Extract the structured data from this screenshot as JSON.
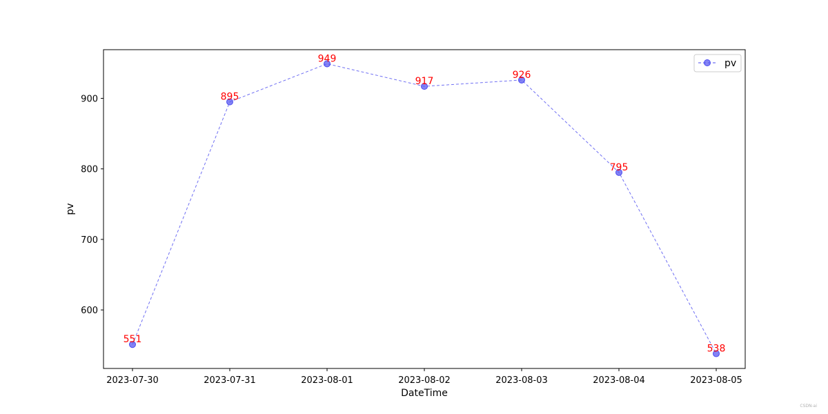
{
  "chart_data": {
    "type": "line",
    "title": "",
    "xlabel": "DateTime",
    "ylabel": "pv",
    "categories": [
      "2023-07-30",
      "2023-07-31",
      "2023-08-01",
      "2023-08-02",
      "2023-08-03",
      "2023-08-04",
      "2023-08-05"
    ],
    "series": [
      {
        "name": "pv",
        "values": [
          551,
          895,
          949,
          917,
          926,
          795,
          538
        ]
      }
    ],
    "ylim": [
      517,
      969
    ],
    "yticks": [
      600,
      700,
      800,
      900
    ],
    "grid": false,
    "legend_position": "top-right",
    "line_style": "dashed",
    "marker": "circle",
    "line_color": "#4b4bf0",
    "marker_color": "#5a5af0",
    "label_color": "#ff0000"
  },
  "watermark": "CSDN-ai"
}
